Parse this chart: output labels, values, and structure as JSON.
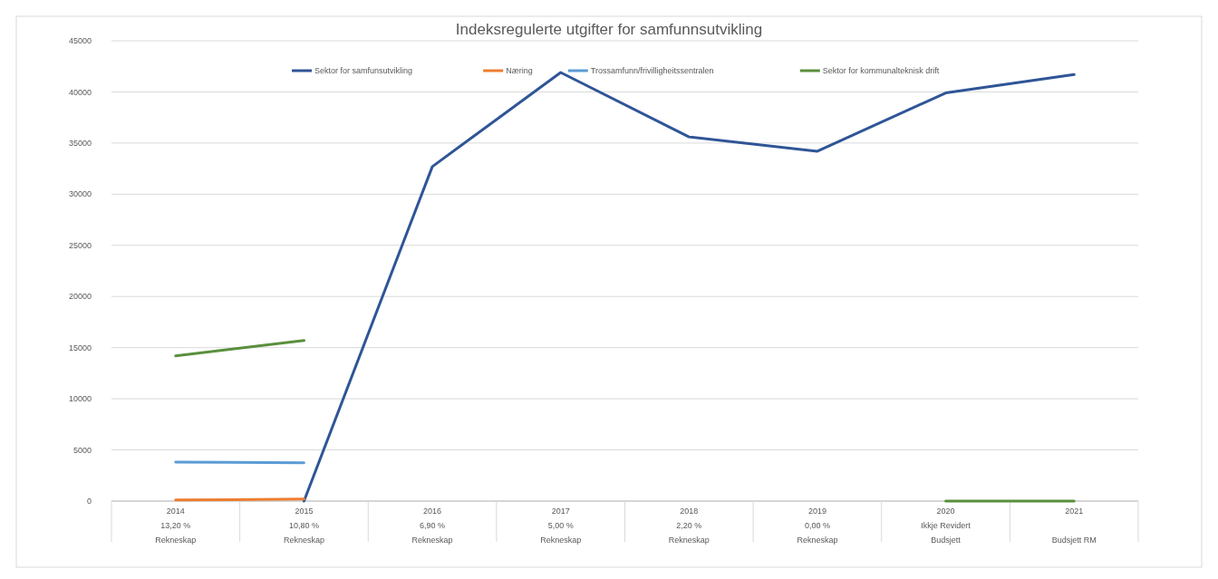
{
  "chart_data": {
    "type": "line",
    "title": "Indeksregulerte utgifter for samfunnsutvikling",
    "categories": [
      "2014\n13,20 %\nRekneskap",
      "2015\n10,80 %\nRekneskap",
      "2016\n6,90 %\nRekneskap",
      "2017\n5,00 %\nRekneskap",
      "2018\n2,20 %\nRekneskap",
      "2019\n0,00 %\nRekneskap",
      "2020\nIkkje Revidert\nBudsjett",
      "2021\n\nBudsjett RM"
    ],
    "series": [
      {
        "name": "Sektor for samfunsutvikling",
        "color": "#2f5597",
        "values": [
          null,
          0,
          32700,
          41900,
          35600,
          34200,
          39900,
          41700
        ]
      },
      {
        "name": "Næring",
        "color": "#ed7d31",
        "values": [
          100,
          200,
          null,
          null,
          null,
          null,
          null,
          null
        ]
      },
      {
        "name": "Trossamfunn/frivilligheitssentralen",
        "color": "#5b9bd5",
        "values": [
          3800,
          3750,
          null,
          null,
          null,
          null,
          null,
          null
        ]
      },
      {
        "name": "Sektor for kommunalteknisk drift",
        "color": "#5a8f3c",
        "values": [
          14200,
          15700,
          null,
          null,
          null,
          null,
          0,
          0
        ]
      }
    ],
    "ylim": [
      0,
      45000
    ],
    "yticks": [
      0,
      5000,
      10000,
      15000,
      20000,
      25000,
      30000,
      35000,
      40000,
      45000
    ],
    "grid": "y",
    "legend": "top",
    "marker": "none",
    "line_style": "solid"
  }
}
